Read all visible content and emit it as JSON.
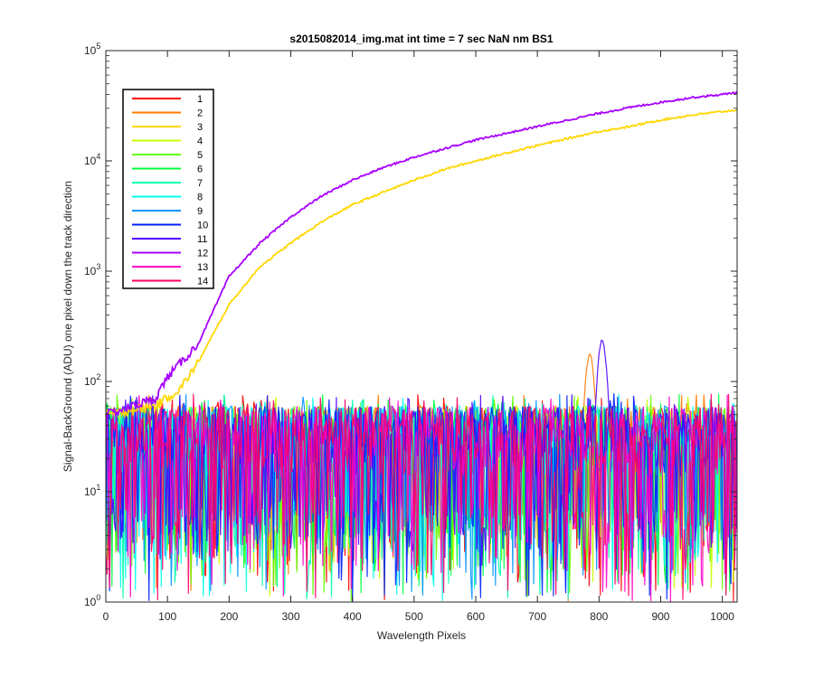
{
  "chart_data": {
    "type": "line",
    "title": "s2015082014_img.mat int time = 7 sec  NaN nm BS1",
    "xlabel": "Wavelength Pixels",
    "ylabel": "Signal-BackGround (ADU) one pixel down the track direction",
    "xlim": [
      0,
      1024
    ],
    "ylim": [
      1,
      100000
    ],
    "yscale": "log",
    "grid": false,
    "legend_position": "top-left",
    "x_ticks": [
      "0",
      "100",
      "200",
      "300",
      "400",
      "500",
      "600",
      "700",
      "800",
      "900",
      "1000"
    ],
    "y_ticks": [
      {
        "base": "10",
        "exp": "0"
      },
      {
        "base": "10",
        "exp": "1"
      },
      {
        "base": "10",
        "exp": "2"
      },
      {
        "base": "10",
        "exp": "3"
      },
      {
        "base": "10",
        "exp": "4"
      },
      {
        "base": "10",
        "exp": "5"
      }
    ],
    "noise_floor": {
      "typical_max": 60,
      "typical_min": 1,
      "median": 30
    },
    "series": [
      {
        "name": "1",
        "color": "#ff0000"
      },
      {
        "name": "2",
        "color": "#ff7a00",
        "peak": {
          "x": 785,
          "value": 170
        }
      },
      {
        "name": "3",
        "color": "#ffd700",
        "trace": {
          "x": [
            0,
            80,
            120,
            150,
            200,
            250,
            300,
            350,
            400,
            450,
            500,
            550,
            600,
            650,
            700,
            750,
            800,
            850,
            900,
            950,
            1000,
            1024
          ],
          "y": [
            50,
            60,
            85,
            150,
            500,
            1100,
            1800,
            2800,
            4000,
            5200,
            6700,
            8400,
            10000,
            11800,
            13800,
            16000,
            18500,
            20500,
            23500,
            26000,
            28000,
            29000
          ]
        }
      },
      {
        "name": "4",
        "color": "#c8ff00"
      },
      {
        "name": "5",
        "color": "#66ff00"
      },
      {
        "name": "6",
        "color": "#00ff40"
      },
      {
        "name": "7",
        "color": "#00ffaa"
      },
      {
        "name": "8",
        "color": "#00ffee"
      },
      {
        "name": "9",
        "color": "#0095ff"
      },
      {
        "name": "10",
        "color": "#0020ff"
      },
      {
        "name": "11",
        "color": "#4d00ff",
        "peak": {
          "x": 805,
          "value": 230
        }
      },
      {
        "name": "12",
        "color": "#a800ff",
        "trace": {
          "x": [
            0,
            80,
            100,
            150,
            200,
            250,
            300,
            350,
            400,
            450,
            500,
            550,
            600,
            650,
            700,
            750,
            800,
            850,
            900,
            950,
            1000,
            1024
          ],
          "y": [
            50,
            70,
            110,
            220,
            900,
            1800,
            3100,
            4800,
            6700,
            8700,
            10800,
            13000,
            15500,
            17800,
            20500,
            23500,
            27000,
            30500,
            34000,
            37500,
            40000,
            42000
          ]
        }
      },
      {
        "name": "13",
        "color": "#ff00cc"
      },
      {
        "name": "14",
        "color": "#ff0066"
      }
    ]
  }
}
